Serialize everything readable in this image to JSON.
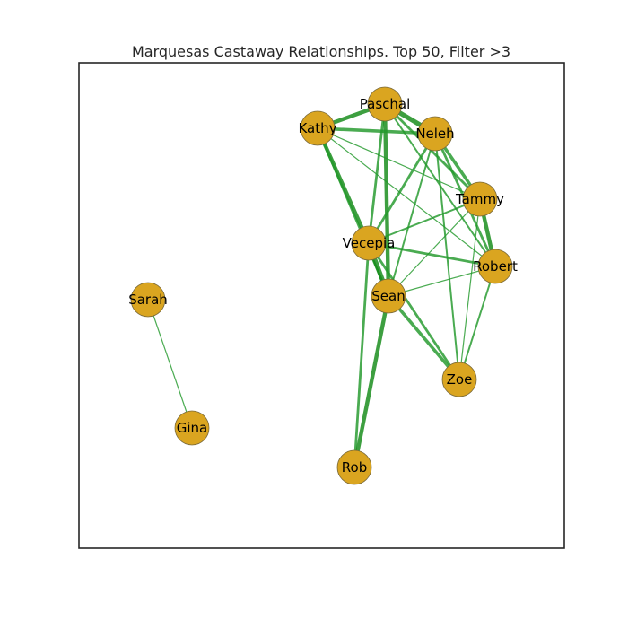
{
  "title": "Marquesas Castaway Relationships. Top 50, Filter >3",
  "colors": {
    "node_fill": "#DAA520",
    "edge": "#22992b",
    "edge_strong": "#128a16"
  },
  "nodes": [
    {
      "id": "paschal",
      "label": "Paschal"
    },
    {
      "id": "kathy",
      "label": "Kathy"
    },
    {
      "id": "neleh",
      "label": "Neleh"
    },
    {
      "id": "tammy",
      "label": "Tammy"
    },
    {
      "id": "vecepia",
      "label": "Vecepia"
    },
    {
      "id": "robert",
      "label": "Robert"
    },
    {
      "id": "sean",
      "label": "Sean"
    },
    {
      "id": "sarah",
      "label": "Sarah"
    },
    {
      "id": "zoe",
      "label": "Zoe"
    },
    {
      "id": "gina",
      "label": "Gina"
    },
    {
      "id": "rob",
      "label": "Rob"
    }
  ],
  "edges": [
    {
      "source": "sarah",
      "target": "gina",
      "weight": 4
    },
    {
      "source": "paschal",
      "target": "kathy",
      "weight": 8
    },
    {
      "source": "paschal",
      "target": "neleh",
      "weight": 9
    },
    {
      "source": "paschal",
      "target": "tammy",
      "weight": 6
    },
    {
      "source": "paschal",
      "target": "vecepia",
      "weight": 6
    },
    {
      "source": "paschal",
      "target": "sean",
      "weight": 8
    },
    {
      "source": "paschal",
      "target": "robert",
      "weight": 5
    },
    {
      "source": "kathy",
      "target": "neleh",
      "weight": 7
    },
    {
      "source": "kathy",
      "target": "tammy",
      "weight": 4
    },
    {
      "source": "kathy",
      "target": "robert",
      "weight": 4
    },
    {
      "source": "kathy",
      "target": "vecepia",
      "weight": 8
    },
    {
      "source": "kathy",
      "target": "sean",
      "weight": 6
    },
    {
      "source": "neleh",
      "target": "tammy",
      "weight": 7
    },
    {
      "source": "neleh",
      "target": "vecepia",
      "weight": 6
    },
    {
      "source": "neleh",
      "target": "sean",
      "weight": 5
    },
    {
      "source": "neleh",
      "target": "robert",
      "weight": 6
    },
    {
      "source": "neleh",
      "target": "zoe",
      "weight": 5
    },
    {
      "source": "tammy",
      "target": "robert",
      "weight": 8
    },
    {
      "source": "tammy",
      "target": "vecepia",
      "weight": 5
    },
    {
      "source": "tammy",
      "target": "sean",
      "weight": 4
    },
    {
      "source": "tammy",
      "target": "zoe",
      "weight": 4
    },
    {
      "source": "vecepia",
      "target": "sean",
      "weight": 9
    },
    {
      "source": "vecepia",
      "target": "robert",
      "weight": 6
    },
    {
      "source": "vecepia",
      "target": "zoe",
      "weight": 6
    },
    {
      "source": "vecepia",
      "target": "rob",
      "weight": 6
    },
    {
      "source": "sean",
      "target": "robert",
      "weight": 4
    },
    {
      "source": "sean",
      "target": "zoe",
      "weight": 7
    },
    {
      "source": "sean",
      "target": "rob",
      "weight": 8
    },
    {
      "source": "robert",
      "target": "zoe",
      "weight": 5
    }
  ]
}
